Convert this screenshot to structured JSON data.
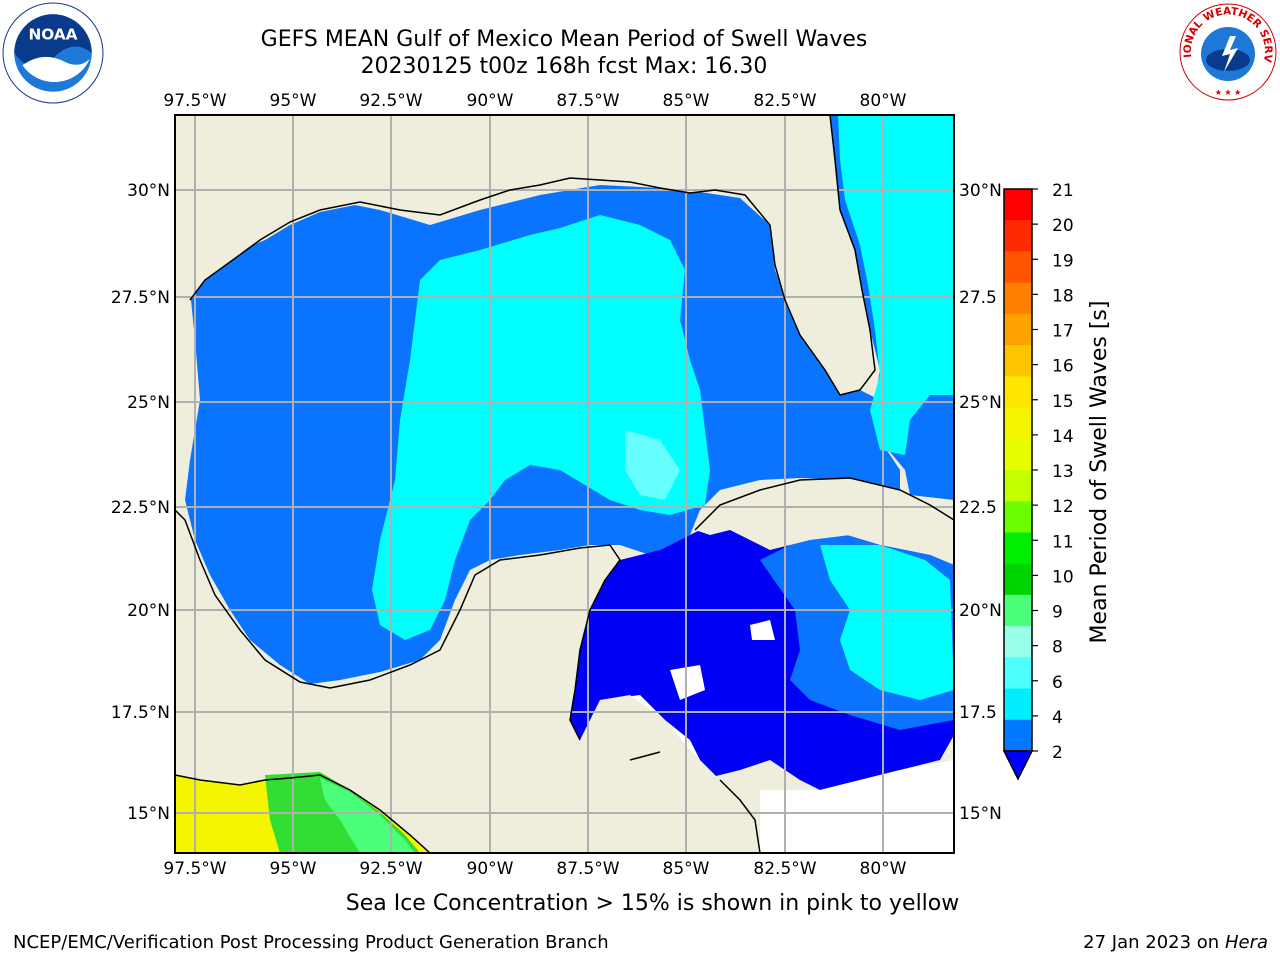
{
  "title_line1": "GEFS MEAN Gulf of Mexico Mean Period of Swell Waves",
  "title_line2": "20230125 t00z 168h fcst   Max: 16.30",
  "lon_ticks": [
    "97.5°W",
    "95°W",
    "92.5°W",
    "90°W",
    "87.5°W",
    "85°W",
    "82.5°W",
    "80°W"
  ],
  "lat_ticks_left": [
    "30°N",
    "27.5°N",
    "25°N",
    "22.5°N",
    "20°N",
    "17.5°N",
    "15°N"
  ],
  "lat_ticks_right": [
    "30°N",
    "27.5",
    "25°N",
    "22.5",
    "20°N",
    "17.5",
    "15°N"
  ],
  "colorbar": {
    "label": "Mean Period of Swell Waves [s]",
    "ticks": [
      "21",
      "20",
      "19",
      "18",
      "17",
      "16",
      "15",
      "14",
      "13",
      "12",
      "11",
      "10",
      "9",
      "8",
      "6",
      "4",
      "2"
    ],
    "colors": [
      "#ff0000",
      "#ff2a00",
      "#ff5500",
      "#ff7f00",
      "#ffa200",
      "#ffc400",
      "#ffe600",
      "#f5f500",
      "#e6ff00",
      "#c4ff00",
      "#6cff00",
      "#00ee00",
      "#00d400",
      "#4cff7a",
      "#9affea",
      "#4dffff",
      "#00eeff",
      "#0079ff"
    ],
    "extend_color": "#0000ff"
  },
  "map_colors": {
    "land": "#efeddc",
    "deep_blue": "#0000f5",
    "blue": "#0a74ff",
    "cyan": "#00ffff",
    "light_cyan": "#66ffff",
    "green": "#33dd33"
  },
  "sea_ice_note": "Sea Ice Concentration > 15% is shown in pink to yellow",
  "footer_left": "NCEP/EMC/Verification Post Processing Product Generation Branch",
  "footer_right_date": "27 Jan 2023 on",
  "footer_right_host": "Hera",
  "logos": {
    "noaa_text": "NOAA",
    "nws_text": "NATIONAL WEATHER SERVICE"
  }
}
